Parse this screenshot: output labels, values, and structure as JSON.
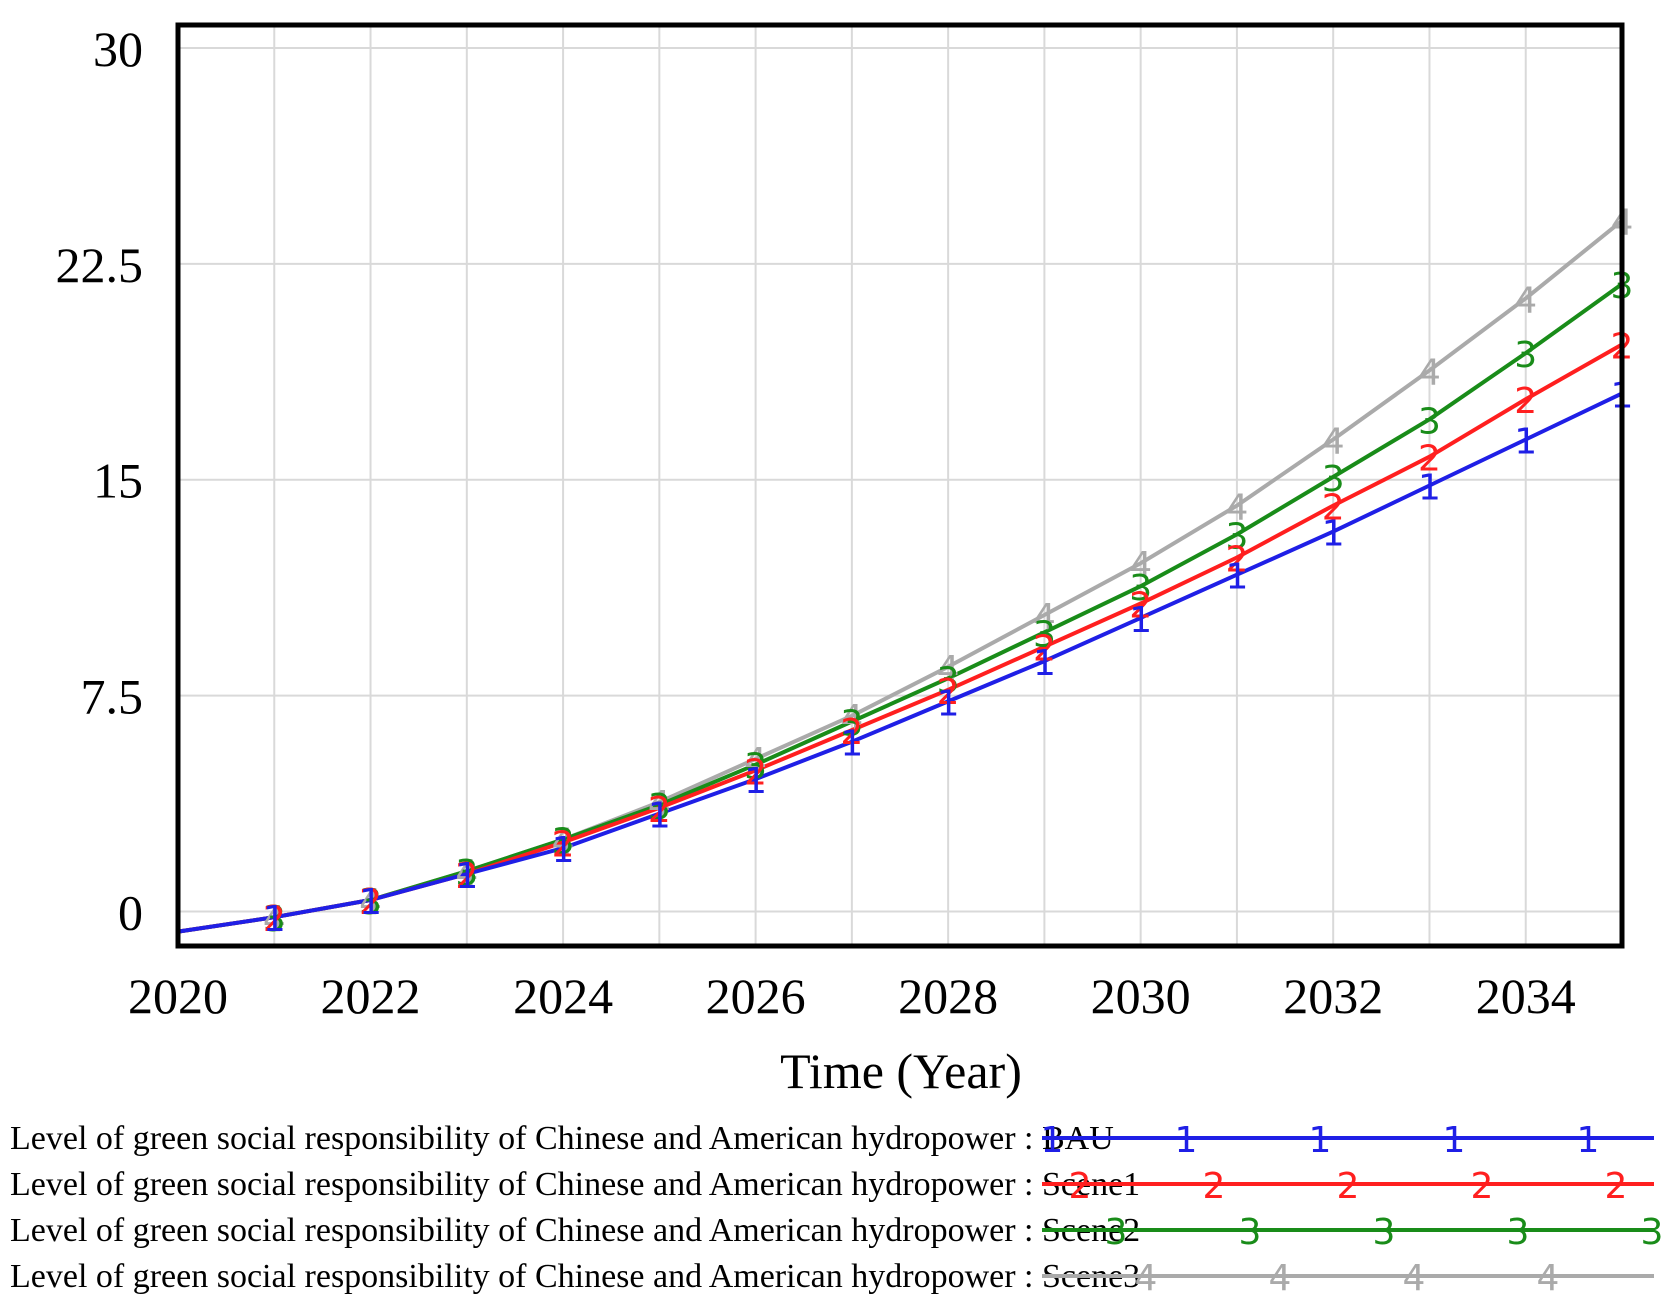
{
  "chart_data": {
    "type": "line",
    "xlabel": "Time (Year)",
    "ylabel": "",
    "x": [
      2020,
      2021,
      2022,
      2023,
      2024,
      2025,
      2026,
      2027,
      2028,
      2029,
      2030,
      2031,
      2032,
      2033,
      2034,
      2035
    ],
    "xlim": [
      2020,
      2035
    ],
    "ylim": [
      -1.2,
      30.8
    ],
    "xticks": [
      2020,
      2022,
      2024,
      2026,
      2028,
      2030,
      2032,
      2034
    ],
    "xtick_labels": [
      "2020",
      "2022",
      "2024",
      "2026",
      "2028",
      "2030",
      "2032",
      "2034"
    ],
    "yticks": [
      0,
      7.5,
      15,
      22.5,
      30
    ],
    "ytick_labels": [
      "0",
      "7.5",
      "15",
      "22.5",
      "30"
    ],
    "grid": true,
    "legend_position": "bottom",
    "series": [
      {
        "name": "Level of green social responsibility of Chinese and American hydropower : BAU",
        "marker": "1",
        "color": "#1f1fe6",
        "values": [
          -0.7,
          -0.2,
          0.4,
          1.3,
          2.2,
          3.4,
          4.6,
          5.9,
          7.3,
          8.7,
          10.2,
          11.7,
          13.2,
          14.8,
          16.4,
          18.0
        ]
      },
      {
        "name": "Level of green social responsibility of Chinese and American hydropower : Scene1",
        "marker": "2",
        "color": "#ff1f1f",
        "values": [
          -0.7,
          -0.2,
          0.4,
          1.3,
          2.4,
          3.6,
          4.9,
          6.3,
          7.7,
          9.2,
          10.7,
          12.3,
          14.1,
          15.8,
          17.8,
          19.7
        ]
      },
      {
        "name": "Level of green social responsibility of Chinese and American hydropower : Scene2",
        "marker": "3",
        "color": "#198c19",
        "values": [
          -0.7,
          -0.2,
          0.4,
          1.4,
          2.5,
          3.7,
          5.1,
          6.6,
          8.1,
          9.7,
          11.3,
          13.1,
          15.1,
          17.1,
          19.4,
          21.8
        ]
      },
      {
        "name": "Level of green social responsibility of Chinese and American hydropower : Scene3",
        "marker": "4",
        "color": "#aaaaaa",
        "values": [
          -0.7,
          -0.2,
          0.4,
          1.4,
          2.5,
          3.8,
          5.3,
          6.8,
          8.5,
          10.3,
          12.1,
          14.1,
          16.4,
          18.8,
          21.3,
          24.0
        ]
      }
    ]
  }
}
